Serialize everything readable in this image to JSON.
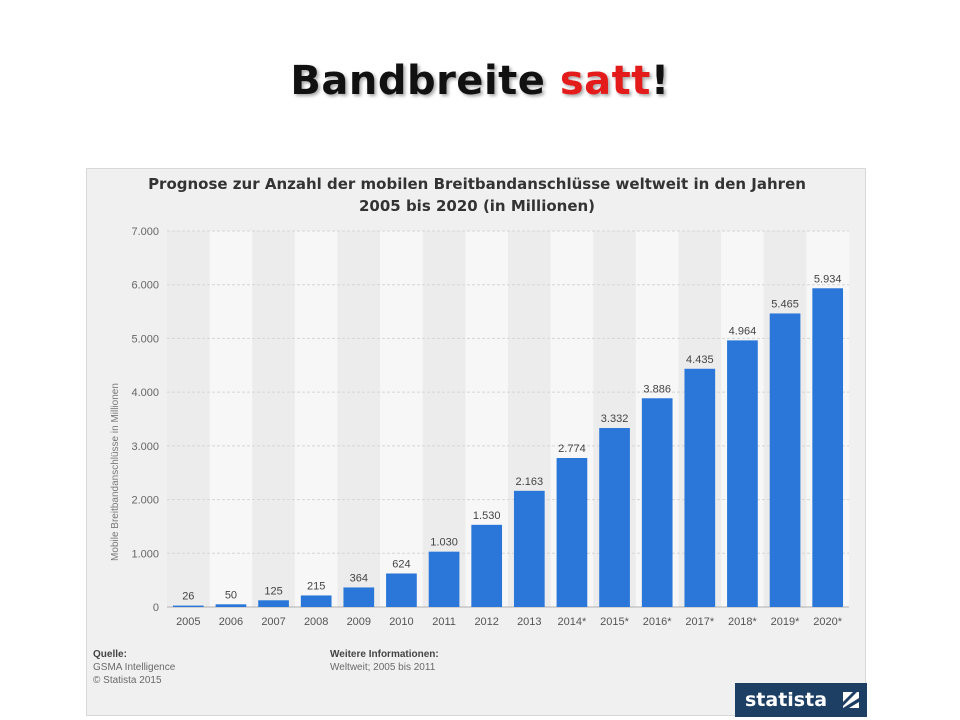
{
  "slide": {
    "title_main": "Bandbreite ",
    "title_accent": "satt",
    "title_end": "!",
    "accent_color": "#e41b1b"
  },
  "chart_data": {
    "type": "bar",
    "title_line1": "Prognose zur Anzahl der mobilen Breitbandanschlüsse weltweit in den Jahren",
    "title_line2": "2005 bis 2020 (in Millionen)",
    "xlabel": "",
    "ylabel": "Mobile Breitbandanschlüsse in Millionen",
    "ylim": [
      0,
      7000
    ],
    "yticks": [
      0,
      1000,
      2000,
      3000,
      4000,
      5000,
      6000,
      7000
    ],
    "ytick_labels": [
      "0",
      "1.000",
      "2.000",
      "3.000",
      "4.000",
      "5.000",
      "6.000",
      "7.000"
    ],
    "categories": [
      "2005",
      "2006",
      "2007",
      "2008",
      "2009",
      "2010",
      "2011",
      "2012",
      "2013",
      "2014*",
      "2015*",
      "2016*",
      "2017*",
      "2018*",
      "2019*",
      "2020*"
    ],
    "values": [
      26,
      50,
      125,
      215,
      364,
      624,
      1030,
      1530,
      2163,
      2774,
      3332,
      3886,
      4435,
      4964,
      5465,
      5934
    ],
    "value_labels": [
      "26",
      "50",
      "125",
      "215",
      "364",
      "624",
      "1.030",
      "1.530",
      "2.163",
      "2.774",
      "3.332",
      "3.886",
      "4.435",
      "4.964",
      "5.465",
      "5.934"
    ],
    "bar_color": "#2a77d9",
    "grid": true,
    "legend": "none"
  },
  "footer": {
    "source_heading": "Quelle:",
    "source_line1": "GSMA Intelligence",
    "source_line2": "© Statista 2015",
    "info_heading": "Weitere Informationen:",
    "info_line1": "Weltweit; 2005 bis 2011",
    "brand": "statista",
    "brand_color": "#1d3f63"
  }
}
